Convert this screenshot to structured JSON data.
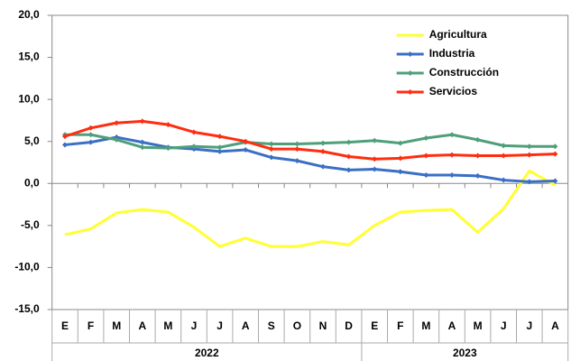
{
  "chart_data": {
    "type": "line",
    "categories": [
      "E",
      "F",
      "M",
      "A",
      "M",
      "J",
      "J",
      "A",
      "S",
      "O",
      "N",
      "D",
      "E",
      "F",
      "M",
      "A",
      "M",
      "J",
      "J",
      "A"
    ],
    "groups": [
      {
        "label": "2022",
        "count": 12
      },
      {
        "label": "2023",
        "count": 8
      }
    ],
    "ylim": [
      -15,
      20
    ],
    "yticks": [
      {
        "value": -15,
        "label": "-15,0"
      },
      {
        "value": -10,
        "label": "-10,0"
      },
      {
        "value": -5,
        "label": "-5,0"
      },
      {
        "value": 0,
        "label": "0,0"
      },
      {
        "value": 5,
        "label": "5,0"
      },
      {
        "value": 10,
        "label": "10,0"
      },
      {
        "value": 15,
        "label": "15,0"
      },
      {
        "value": 20,
        "label": "20,0"
      }
    ],
    "grid": false,
    "legend": "top-right",
    "series": [
      {
        "name": "Agricultura",
        "color": "#ffff33",
        "marker": false,
        "values": [
          -6.1,
          -5.4,
          -3.5,
          -3.1,
          -3.4,
          -5.2,
          -7.5,
          -6.5,
          -7.5,
          -7.5,
          -6.9,
          -7.3,
          -5.0,
          -3.4,
          -3.2,
          -3.1,
          -5.8,
          -3.0,
          1.5,
          -0.2
        ]
      },
      {
        "name": "Industria",
        "color": "#3a6fc4",
        "marker": true,
        "values": [
          4.6,
          4.9,
          5.5,
          4.9,
          4.3,
          4.1,
          3.8,
          4.0,
          3.1,
          2.7,
          2.0,
          1.6,
          1.7,
          1.4,
          1.0,
          1.0,
          0.9,
          0.4,
          0.2,
          0.3
        ]
      },
      {
        "name": "Construcción",
        "color": "#4f9f7a",
        "marker": true,
        "values": [
          5.8,
          5.8,
          5.2,
          4.3,
          4.2,
          4.4,
          4.3,
          4.9,
          4.7,
          4.7,
          4.8,
          4.9,
          5.1,
          4.8,
          5.4,
          5.8,
          5.2,
          4.5,
          4.4,
          4.4
        ]
      },
      {
        "name": "Servicios",
        "color": "#ff2d10",
        "marker": true,
        "values": [
          5.6,
          6.6,
          7.2,
          7.4,
          7.0,
          6.1,
          5.6,
          5.0,
          4.1,
          4.1,
          3.8,
          3.2,
          2.9,
          3.0,
          3.3,
          3.4,
          3.3,
          3.3,
          3.4,
          3.5
        ]
      }
    ]
  }
}
